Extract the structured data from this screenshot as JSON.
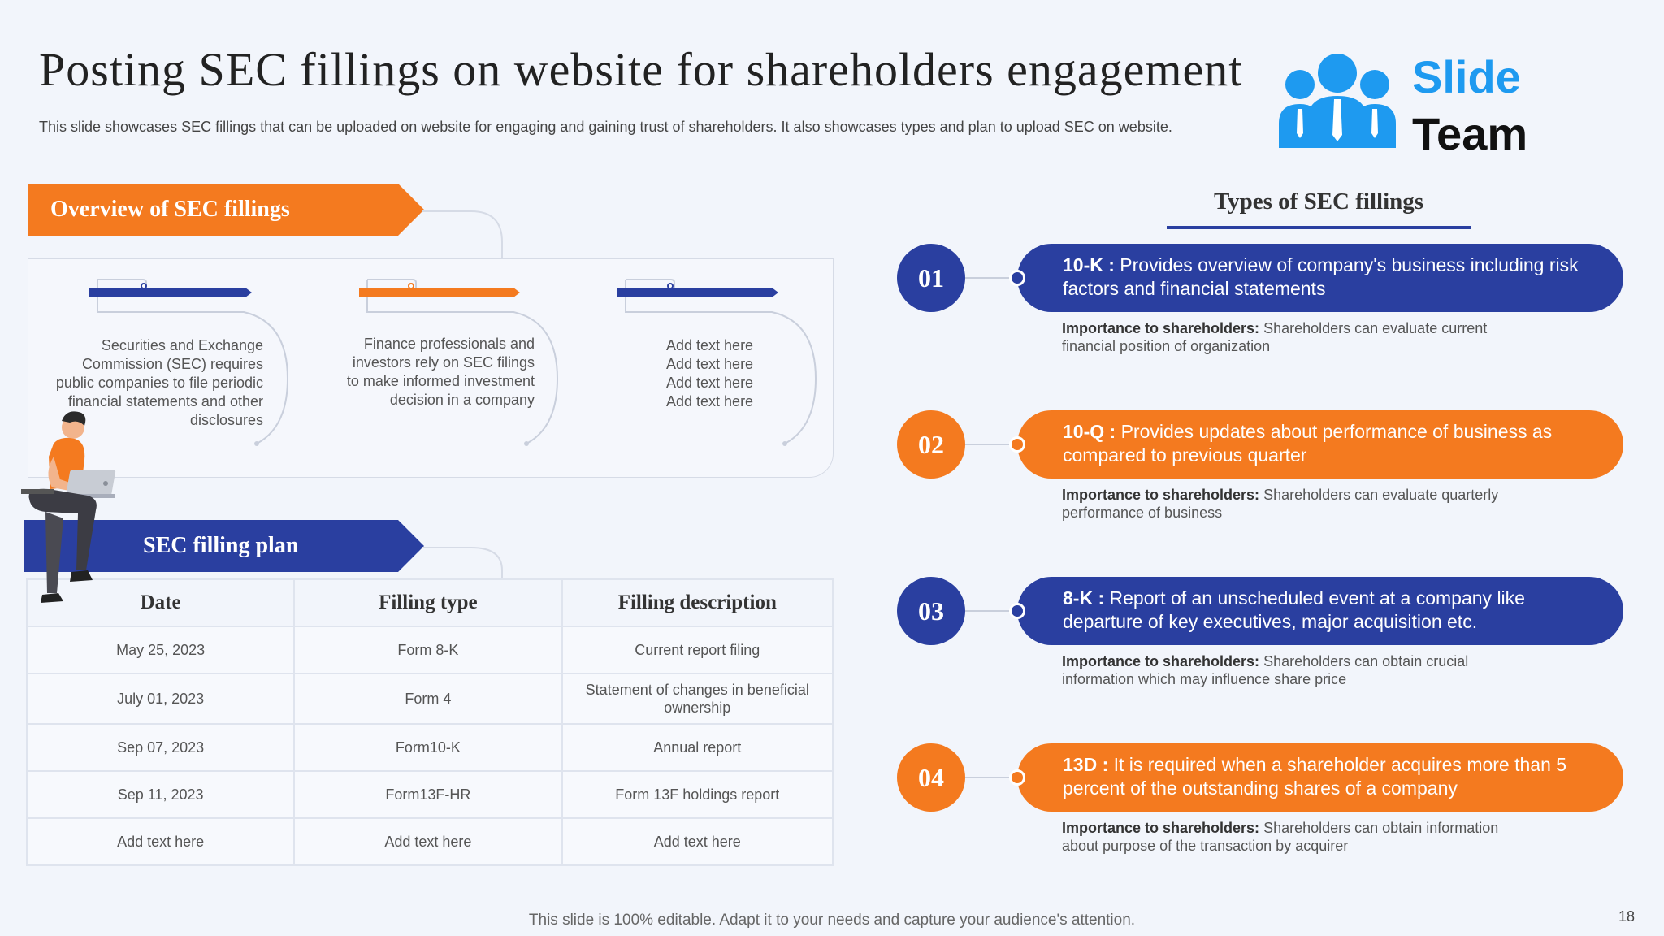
{
  "header": {
    "title": "Posting SEC fillings on website for shareholders engagement",
    "subtitle": "This slide showcases SEC fillings that can be uploaded on website for engaging and gaining trust of shareholders. It also showcases types and plan to upload SEC on website."
  },
  "logo": {
    "line1": "Slide",
    "line2": "Team"
  },
  "overview": {
    "heading": "Overview of SEC fillings",
    "items": [
      {
        "text": "Securities and Exchange Commission (SEC) requires public companies to file periodic financial statements and other disclosures"
      },
      {
        "text": "Finance professionals and investors rely on SEC filings to make informed investment decision in a company"
      },
      {
        "text": "Add text here Add text here Add text here Add text here"
      }
    ]
  },
  "plan": {
    "heading": "SEC filling plan",
    "columns": [
      "Date",
      "Filling  type",
      "Filling  description"
    ],
    "rows": [
      [
        "May 25, 2023",
        "Form 8-K",
        "Current report filing"
      ],
      [
        "July 01, 2023",
        "Form 4",
        "Statement of changes in beneficial ownership"
      ],
      [
        "Sep  07, 2023",
        "Form10-K",
        "Annual report"
      ],
      [
        "Sep 11, 2023",
        "Form13F-HR",
        "Form 13F holdings report"
      ],
      [
        "Add text here",
        "Add text here",
        "Add text here"
      ]
    ]
  },
  "types": {
    "heading": "Types of  SEC fillings",
    "items": [
      {
        "num": "01",
        "code": "10-K :",
        "desc": " Provides overview  of company's business including risk factors and financial  statements",
        "importance_label": "Importance to shareholders:",
        "importance": " Shareholders can evaluate current financial position of organization"
      },
      {
        "num": "02",
        "code": "10-Q :",
        "desc": " Provides updates about performance of business as compared to previous quarter",
        "importance_label": "Importance to shareholders:",
        "importance": " Shareholders can evaluate quarterly performance of business"
      },
      {
        "num": "03",
        "code": "8-K :",
        "desc": " Report of an unscheduled event at a company like departure of key executives, major acquisition etc.",
        "importance_label": "Importance to shareholders:",
        "importance": " Shareholders can obtain crucial information which may influence share price"
      },
      {
        "num": "04",
        "code": "13D :",
        "desc": " It is required when a shareholder acquires more than 5 percent of the outstanding shares of a company",
        "importance_label": "Importance to shareholders:",
        "importance": " Shareholders can obtain information about purpose of the transaction by acquirer"
      }
    ]
  },
  "footer": {
    "text": "This slide is 100% editable. Adapt it to your needs and capture your audience's attention.",
    "page": "18"
  },
  "colors": {
    "blue": "#2a3fa0",
    "orange": "#f47a1f",
    "logo_blue": "#1e9af0"
  }
}
